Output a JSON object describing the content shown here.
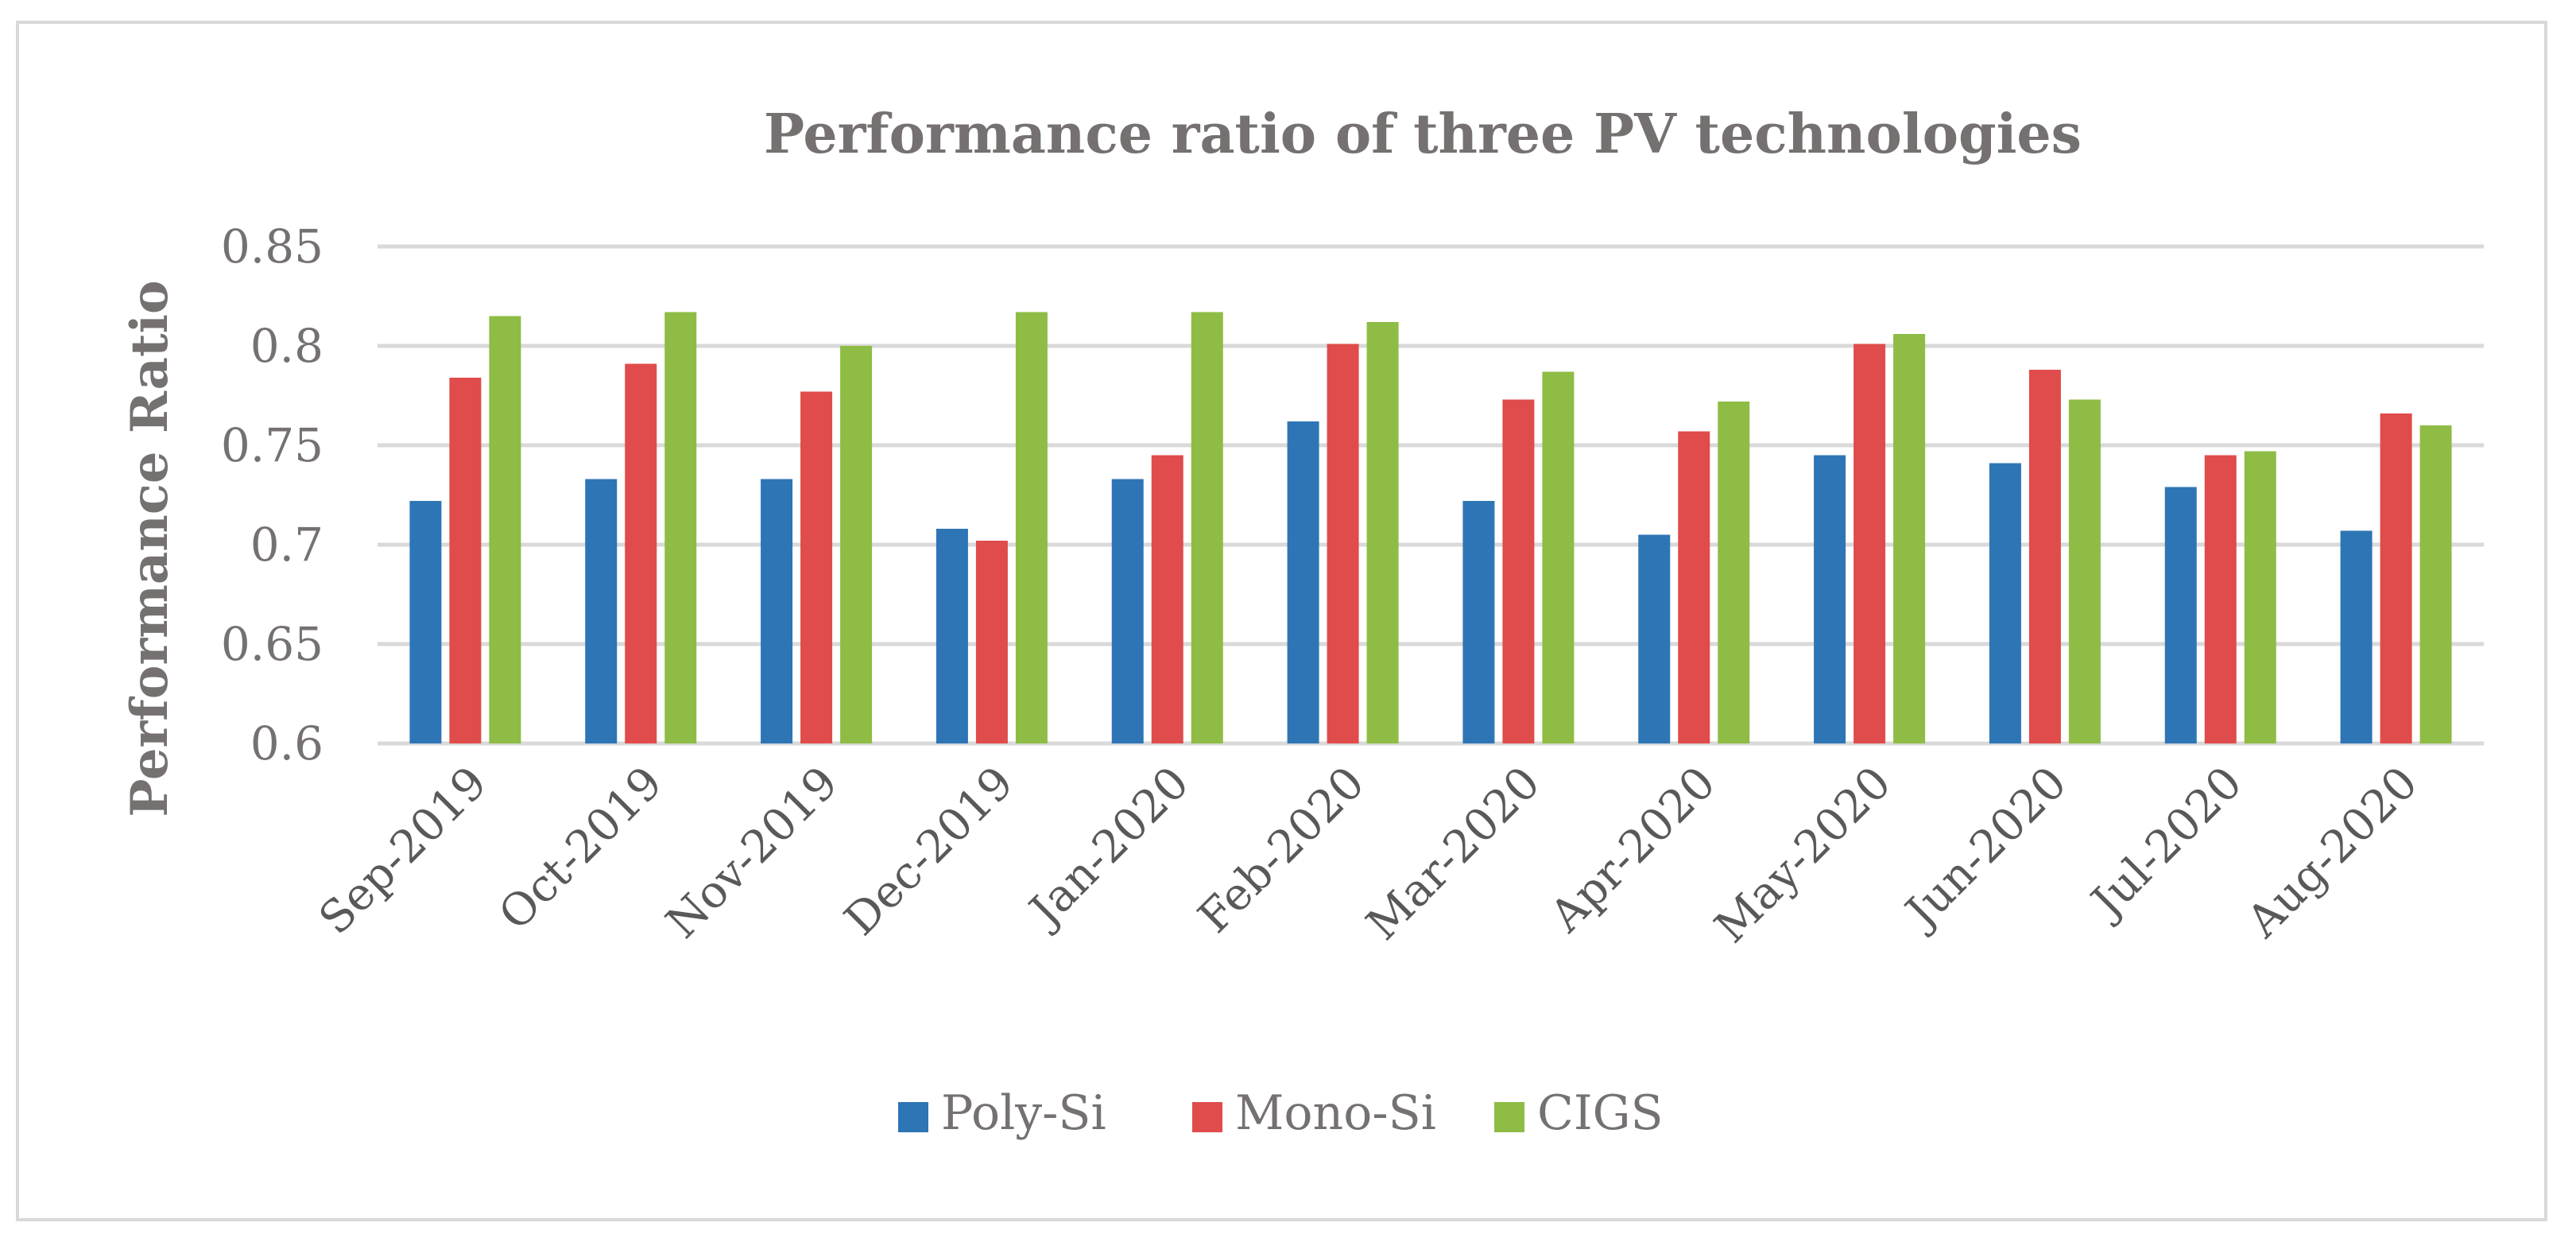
{
  "chart_data": {
    "type": "bar",
    "title": "Performance ratio of three PV technologies",
    "xlabel": "",
    "ylabel": "Performance Ratio",
    "ylim": [
      0.6,
      0.85
    ],
    "yticks": [
      0.6,
      0.65,
      0.7,
      0.75,
      0.8,
      0.85
    ],
    "ytick_labels": [
      "0.6",
      "0.65",
      "0.7",
      "0.75",
      "0.8",
      "0.85"
    ],
    "grid": true,
    "legend_position": "bottom",
    "categories": [
      "Sep-2019",
      "Oct-2019",
      "Nov-2019",
      "Dec-2019",
      "Jan-2020",
      "Feb-2020",
      "Mar-2020",
      "Apr-2020",
      "May-2020",
      "Jun-2020",
      "Jul-2020",
      "Aug-2020"
    ],
    "series": [
      {
        "name": "Poly-Si",
        "color": "#2e75b6",
        "values": [
          0.722,
          0.733,
          0.733,
          0.708,
          0.733,
          0.762,
          0.722,
          0.705,
          0.745,
          0.741,
          0.729,
          0.707
        ]
      },
      {
        "name": "Mono-Si",
        "color": "#e04b4b",
        "values": [
          0.784,
          0.791,
          0.777,
          0.702,
          0.745,
          0.801,
          0.773,
          0.757,
          0.801,
          0.788,
          0.745,
          0.766
        ]
      },
      {
        "name": "CIGS",
        "color": "#8fbc45",
        "values": [
          0.815,
          0.817,
          0.8,
          0.817,
          0.817,
          0.812,
          0.787,
          0.772,
          0.806,
          0.773,
          0.747,
          0.76
        ]
      }
    ]
  }
}
